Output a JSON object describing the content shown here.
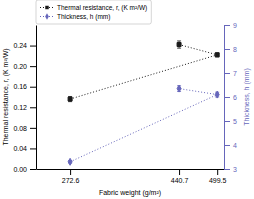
{
  "chart_data": {
    "type": "line",
    "x": [
      272.6,
      499.5,
      440.7
    ],
    "xlabel": "Fabric weight (g/m²)",
    "ylabel": "Thermal resistance, r, (K m²/W)",
    "y2label": "Thickness, h (mm)",
    "xlim": [
      220,
      510
    ],
    "xticks": [
      272.6,
      499.5,
      440.7
    ],
    "ylim": [
      0.0,
      0.28
    ],
    "yticks": [
      {
        "value": 0.0,
        "label": "0.00"
      },
      0.04,
      0.08,
      0.12,
      0.16,
      {
        "value": 0.2,
        "label": "0.20"
      },
      0.24
    ],
    "y2lim": [
      3.0,
      9.0
    ],
    "y2ticks": [
      3,
      4,
      5,
      6,
      7,
      8,
      9
    ],
    "legend": "upper left",
    "grid": false,
    "series": [
      {
        "name": "Thermal resistance, r, (K m²/W)",
        "color": "#1a1a1a",
        "values": [
          0.136,
          0.222,
          0.242
        ],
        "errors": [
          0.005,
          0.004,
          0.007
        ],
        "marker": "square",
        "line_style": "dotted"
      },
      {
        "name": "Thickness, h (mm)",
        "color": "#6666bb",
        "axis": "y2",
        "values": [
          3.3,
          6.1,
          6.35
        ],
        "errors": [
          0.05,
          0.1,
          0.12
        ],
        "marker": "diamond",
        "line_style": "dotted"
      }
    ]
  }
}
